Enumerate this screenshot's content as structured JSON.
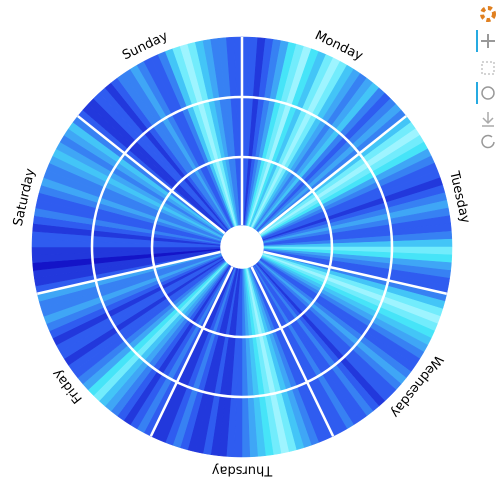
{
  "chart_data": {
    "type": "radial_heatmap",
    "series": [
      {
        "name": "Monday",
        "values": [
          3,
          3,
          2,
          3,
          4,
          5,
          7,
          8,
          9,
          7,
          6,
          8,
          9,
          8,
          6,
          5,
          4,
          5,
          6,
          4,
          3,
          4,
          5,
          4
        ]
      },
      {
        "name": "Tuesday",
        "values": [
          6,
          8,
          9,
          8,
          7,
          5,
          4,
          3,
          3,
          2,
          3,
          4,
          5,
          4,
          3,
          3,
          4,
          6,
          8,
          7,
          5,
          4,
          3,
          3
        ]
      },
      {
        "name": "Wednesday",
        "values": [
          4,
          6,
          8,
          9,
          8,
          7,
          6,
          5,
          4,
          3,
          3,
          4,
          5,
          4,
          3,
          3,
          2,
          3,
          4,
          3,
          3,
          4,
          3,
          3
        ]
      },
      {
        "name": "Thursday",
        "values": [
          3,
          3,
          4,
          5,
          6,
          8,
          9,
          8,
          7,
          6,
          5,
          4,
          3,
          3,
          2,
          2,
          3,
          2,
          2,
          3,
          4,
          3,
          2,
          2
        ]
      },
      {
        "name": "Friday",
        "values": [
          3,
          4,
          3,
          2,
          3,
          4,
          5,
          6,
          8,
          7,
          5,
          4,
          3,
          3,
          2,
          3,
          3,
          2,
          3,
          4,
          5,
          4,
          4,
          5
        ]
      },
      {
        "name": "Saturday",
        "values": [
          3,
          2,
          2,
          1,
          2,
          2,
          3,
          3,
          2,
          3,
          4,
          3,
          3,
          4,
          5,
          4,
          4,
          5,
          6,
          5,
          4,
          5,
          6,
          4
        ]
      },
      {
        "name": "Sunday",
        "values": [
          3,
          2,
          2,
          3,
          3,
          2,
          3,
          4,
          4,
          5,
          4,
          3,
          3,
          4,
          6,
          8,
          9,
          8,
          6,
          5,
          4,
          4,
          3,
          3
        ]
      }
    ],
    "clim": [
      1,
      9
    ],
    "colormap": [
      "#1414c8",
      "#2f5cf0",
      "#3fa6f6",
      "#46e4f8",
      "#9ef4ff"
    ],
    "radial_grid": true
  }
}
